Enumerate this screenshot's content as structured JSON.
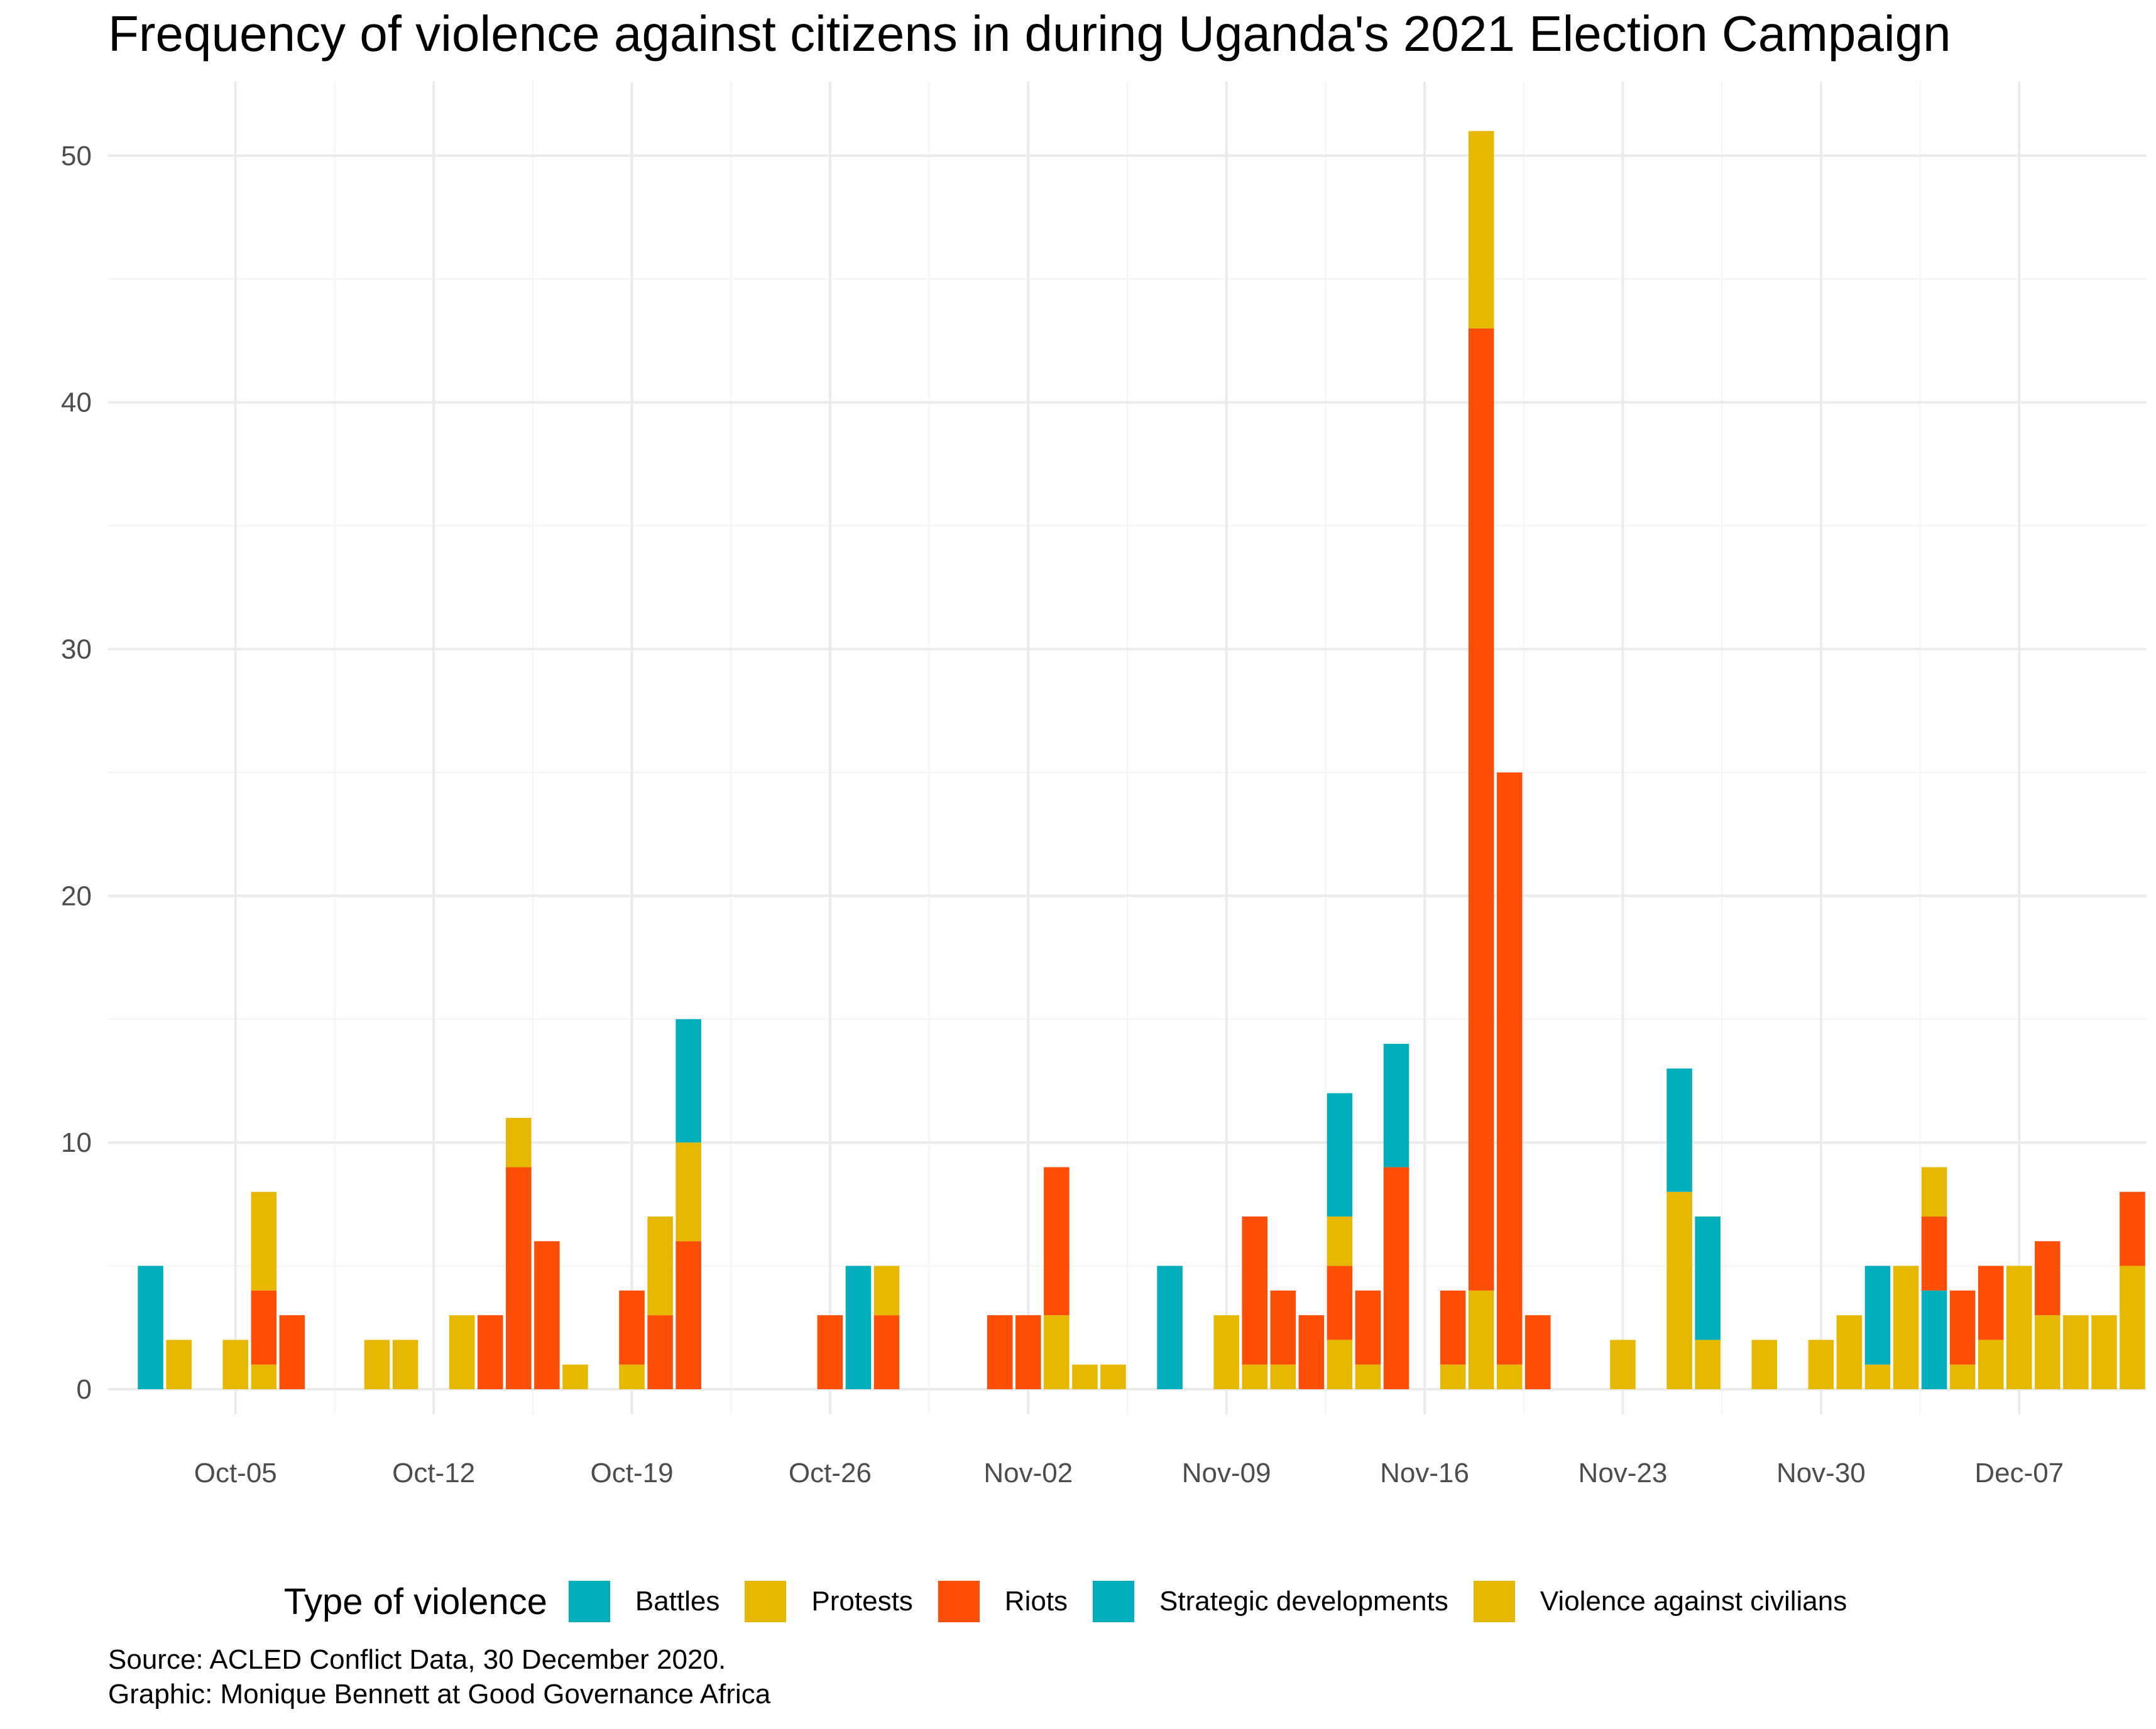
{
  "chart_data": {
    "type": "bar",
    "stacked": true,
    "title": "Frequency of violence against citizens in during Uganda's 2021 Election Campaign",
    "xlabel": "",
    "ylabel": "",
    "ylim": [
      0,
      53
    ],
    "yticks": [
      0,
      10,
      20,
      30,
      40,
      50
    ],
    "x_ticks": [
      {
        "label": "Oct-05",
        "date": "2020-10-05"
      },
      {
        "label": "Oct-12",
        "date": "2020-10-12"
      },
      {
        "label": "Oct-19",
        "date": "2020-10-19"
      },
      {
        "label": "Oct-26",
        "date": "2020-10-26"
      },
      {
        "label": "Nov-02",
        "date": "2020-11-02"
      },
      {
        "label": "Nov-09",
        "date": "2020-11-09"
      },
      {
        "label": "Nov-16",
        "date": "2020-11-16"
      },
      {
        "label": "Nov-23",
        "date": "2020-11-23"
      },
      {
        "label": "Nov-30",
        "date": "2020-11-30"
      },
      {
        "label": "Dec-07",
        "date": "2020-12-07"
      }
    ],
    "xlim": [
      "2020-10-01",
      "2020-12-11"
    ],
    "grid": true,
    "legend_position": "bottom",
    "legend_title": "Type of violence",
    "series": [
      {
        "name": "Battles",
        "color": "#00AFBB"
      },
      {
        "name": "Protests",
        "color": "#E7B800"
      },
      {
        "name": "Riots",
        "color": "#FC4E07"
      },
      {
        "name": "Strategic developments",
        "color": "#00AFBB"
      },
      {
        "name": "Violence against civilians",
        "color": "#E7B800"
      }
    ],
    "bars": [
      {
        "date": "2020-10-02",
        "stack": [
          {
            "type": "Battles",
            "value": 5
          }
        ]
      },
      {
        "date": "2020-10-03",
        "stack": [
          {
            "type": "Violence against civilians",
            "value": 2
          }
        ]
      },
      {
        "date": "2020-10-05",
        "stack": [
          {
            "type": "Violence against civilians",
            "value": 2
          }
        ]
      },
      {
        "date": "2020-10-06",
        "stack": [
          {
            "type": "Protests",
            "value": 1
          },
          {
            "type": "Riots",
            "value": 3
          },
          {
            "type": "Violence against civilians",
            "value": 4
          }
        ]
      },
      {
        "date": "2020-10-07",
        "stack": [
          {
            "type": "Riots",
            "value": 3
          }
        ]
      },
      {
        "date": "2020-10-10",
        "stack": [
          {
            "type": "Violence against civilians",
            "value": 2
          }
        ]
      },
      {
        "date": "2020-10-11",
        "stack": [
          {
            "type": "Violence against civilians",
            "value": 2
          }
        ]
      },
      {
        "date": "2020-10-13",
        "stack": [
          {
            "type": "Violence against civilians",
            "value": 3
          }
        ]
      },
      {
        "date": "2020-10-14",
        "stack": [
          {
            "type": "Riots",
            "value": 3
          }
        ]
      },
      {
        "date": "2020-10-15",
        "stack": [
          {
            "type": "Riots",
            "value": 9
          },
          {
            "type": "Violence against civilians",
            "value": 2
          }
        ]
      },
      {
        "date": "2020-10-16",
        "stack": [
          {
            "type": "Riots",
            "value": 6
          }
        ]
      },
      {
        "date": "2020-10-17",
        "stack": [
          {
            "type": "Violence against civilians",
            "value": 1
          }
        ]
      },
      {
        "date": "2020-10-19",
        "stack": [
          {
            "type": "Protests",
            "value": 1
          },
          {
            "type": "Riots",
            "value": 3
          }
        ]
      },
      {
        "date": "2020-10-20",
        "stack": [
          {
            "type": "Riots",
            "value": 3
          },
          {
            "type": "Violence against civilians",
            "value": 4
          }
        ]
      },
      {
        "date": "2020-10-21",
        "stack": [
          {
            "type": "Riots",
            "value": 6
          },
          {
            "type": "Violence against civilians",
            "value": 4
          },
          {
            "type": "Strategic developments",
            "value": 5
          }
        ]
      },
      {
        "date": "2020-10-26",
        "stack": [
          {
            "type": "Riots",
            "value": 3
          }
        ]
      },
      {
        "date": "2020-10-27",
        "stack": [
          {
            "type": "Battles",
            "value": 5
          }
        ]
      },
      {
        "date": "2020-10-28",
        "stack": [
          {
            "type": "Riots",
            "value": 3
          },
          {
            "type": "Violence against civilians",
            "value": 2
          }
        ]
      },
      {
        "date": "2020-11-01",
        "stack": [
          {
            "type": "Riots",
            "value": 3
          }
        ]
      },
      {
        "date": "2020-11-02",
        "stack": [
          {
            "type": "Riots",
            "value": 3
          }
        ]
      },
      {
        "date": "2020-11-03",
        "stack": [
          {
            "type": "Protests",
            "value": 3
          },
          {
            "type": "Riots",
            "value": 6
          }
        ]
      },
      {
        "date": "2020-11-04",
        "stack": [
          {
            "type": "Violence against civilians",
            "value": 1
          }
        ]
      },
      {
        "date": "2020-11-05",
        "stack": [
          {
            "type": "Violence against civilians",
            "value": 1
          }
        ]
      },
      {
        "date": "2020-11-07",
        "stack": [
          {
            "type": "Battles",
            "value": 5
          }
        ]
      },
      {
        "date": "2020-11-09",
        "stack": [
          {
            "type": "Violence against civilians",
            "value": 3
          }
        ]
      },
      {
        "date": "2020-11-10",
        "stack": [
          {
            "type": "Protests",
            "value": 1
          },
          {
            "type": "Riots",
            "value": 6
          }
        ]
      },
      {
        "date": "2020-11-11",
        "stack": [
          {
            "type": "Protests",
            "value": 1
          },
          {
            "type": "Riots",
            "value": 3
          }
        ]
      },
      {
        "date": "2020-11-12",
        "stack": [
          {
            "type": "Riots",
            "value": 3
          }
        ]
      },
      {
        "date": "2020-11-13",
        "stack": [
          {
            "type": "Protests",
            "value": 2
          },
          {
            "type": "Riots",
            "value": 3
          },
          {
            "type": "Violence against civilians",
            "value": 2
          },
          {
            "type": "Strategic developments",
            "value": 5
          }
        ]
      },
      {
        "date": "2020-11-14",
        "stack": [
          {
            "type": "Protests",
            "value": 1
          },
          {
            "type": "Riots",
            "value": 3
          }
        ]
      },
      {
        "date": "2020-11-15",
        "stack": [
          {
            "type": "Riots",
            "value": 9
          },
          {
            "type": "Strategic developments",
            "value": 5
          }
        ]
      },
      {
        "date": "2020-11-17",
        "stack": [
          {
            "type": "Protests",
            "value": 1
          },
          {
            "type": "Riots",
            "value": 3
          }
        ]
      },
      {
        "date": "2020-11-18",
        "stack": [
          {
            "type": "Protests",
            "value": 4
          },
          {
            "type": "Riots",
            "value": 39
          },
          {
            "type": "Violence against civilians",
            "value": 8
          }
        ]
      },
      {
        "date": "2020-11-19",
        "stack": [
          {
            "type": "Protests",
            "value": 1
          },
          {
            "type": "Riots",
            "value": 24
          }
        ]
      },
      {
        "date": "2020-11-20",
        "stack": [
          {
            "type": "Riots",
            "value": 3
          }
        ]
      },
      {
        "date": "2020-11-23",
        "stack": [
          {
            "type": "Violence against civilians",
            "value": 2
          }
        ]
      },
      {
        "date": "2020-11-25",
        "stack": [
          {
            "type": "Violence against civilians",
            "value": 8
          },
          {
            "type": "Strategic developments",
            "value": 5
          }
        ]
      },
      {
        "date": "2020-11-26",
        "stack": [
          {
            "type": "Violence against civilians",
            "value": 2
          },
          {
            "type": "Strategic developments",
            "value": 5
          }
        ]
      },
      {
        "date": "2020-11-28",
        "stack": [
          {
            "type": "Violence against civilians",
            "value": 2
          }
        ]
      },
      {
        "date": "2020-11-30",
        "stack": [
          {
            "type": "Violence against civilians",
            "value": 2
          }
        ]
      },
      {
        "date": "2020-12-01",
        "stack": [
          {
            "type": "Violence against civilians",
            "value": 3
          }
        ]
      },
      {
        "date": "2020-12-02",
        "stack": [
          {
            "type": "Protests",
            "value": 1
          },
          {
            "type": "Strategic developments",
            "value": 4
          }
        ]
      },
      {
        "date": "2020-12-03",
        "stack": [
          {
            "type": "Violence against civilians",
            "value": 5
          }
        ]
      },
      {
        "date": "2020-12-04",
        "stack": [
          {
            "type": "Battles",
            "value": 4
          },
          {
            "type": "Riots",
            "value": 3
          },
          {
            "type": "Violence against civilians",
            "value": 2
          }
        ]
      },
      {
        "date": "2020-12-05",
        "stack": [
          {
            "type": "Protests",
            "value": 1
          },
          {
            "type": "Riots",
            "value": 3
          }
        ]
      },
      {
        "date": "2020-12-06",
        "stack": [
          {
            "type": "Protests",
            "value": 2
          },
          {
            "type": "Riots",
            "value": 3
          }
        ]
      },
      {
        "date": "2020-12-07",
        "stack": [
          {
            "type": "Violence against civilians",
            "value": 5
          }
        ]
      },
      {
        "date": "2020-12-08",
        "stack": [
          {
            "type": "Protests",
            "value": 3
          },
          {
            "type": "Riots",
            "value": 3
          }
        ]
      },
      {
        "date": "2020-12-09",
        "stack": [
          {
            "type": "Violence against civilians",
            "value": 3
          }
        ]
      },
      {
        "date": "2020-12-10",
        "stack": [
          {
            "type": "Violence against civilians",
            "value": 3
          }
        ]
      },
      {
        "date": "2020-12-11",
        "stack": [
          {
            "type": "Protests",
            "value": 5
          },
          {
            "type": "Riots",
            "value": 3
          }
        ]
      }
    ]
  },
  "caption": {
    "line1": "Source: ACLED Conflict Data, 30 December 2020.",
    "line2": "Graphic: Monique Bennett at Good Governance Africa"
  }
}
